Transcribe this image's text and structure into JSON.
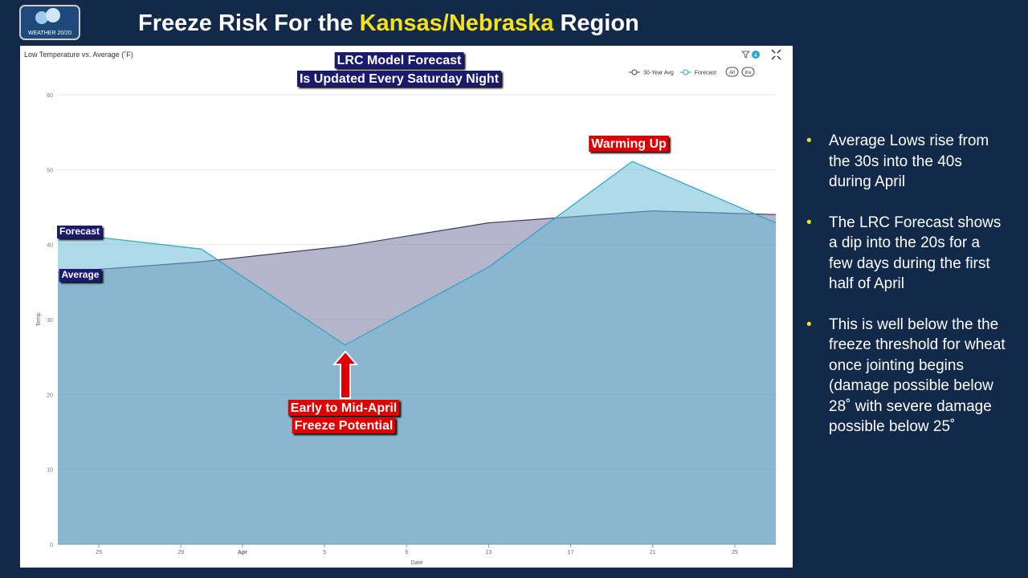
{
  "header": {
    "logo": "WEATHER 20/20",
    "title_parts": [
      "Freeze Risk For the ",
      "Kansas/Nebraska",
      " Region"
    ]
  },
  "chart_data": {
    "type": "area",
    "title": "Low Temperature vs. Average (˚F)",
    "x_label": "Date",
    "y_label": "Temp",
    "filter_count": "4",
    "buttons": [
      "All",
      "Inv"
    ],
    "series": [
      {
        "name": "30-Year Avg",
        "color": "#3d3d6b",
        "fill": "#696b97",
        "x": [
          23,
          30,
          37,
          44,
          52,
          58
        ],
        "values": [
          36.3,
          37.7,
          39.8,
          42.9,
          44.5,
          44.0
        ]
      },
      {
        "name": "Forecast",
        "color": "#29a3c8",
        "fill": "#5fb7d4",
        "x": [
          23,
          30,
          37,
          44,
          51,
          58
        ],
        "values": [
          41.6,
          39.4,
          26.6,
          37.0,
          51.1,
          42.9
        ]
      }
    ],
    "xlim": [
      23,
      58
    ],
    "xticks": [
      {
        "value": 25,
        "label": "25"
      },
      {
        "value": 29,
        "label": "29"
      },
      {
        "value": 32,
        "label": "Apr"
      },
      {
        "value": 36,
        "label": "5"
      },
      {
        "value": 40,
        "label": "9"
      },
      {
        "value": 44,
        "label": "13"
      },
      {
        "value": 48,
        "label": "17"
      },
      {
        "value": 52,
        "label": "21"
      },
      {
        "value": 56,
        "label": "25"
      }
    ],
    "ylim": [
      0,
      60
    ],
    "yticks": [
      0,
      10,
      20,
      30,
      40,
      50,
      60
    ],
    "grid": true,
    "annotations": {
      "model_note": [
        "LRC Model Forecast",
        "Is Updated Every Saturday Night"
      ],
      "forecast_label": "Forecast",
      "average_label": "Average",
      "warming": "Warming Up",
      "freeze": [
        "Early to Mid-April",
        "Freeze Potential"
      ]
    }
  },
  "bullets": [
    "Average Lows rise from the 30s into the 40s during April",
    "The LRC Forecast shows a dip into the 20s for a few days during the first half of April",
    "This is well below the the freeze threshold for wheat once jointing begins (damage possible below 28˚ with severe damage possible below 25˚"
  ]
}
